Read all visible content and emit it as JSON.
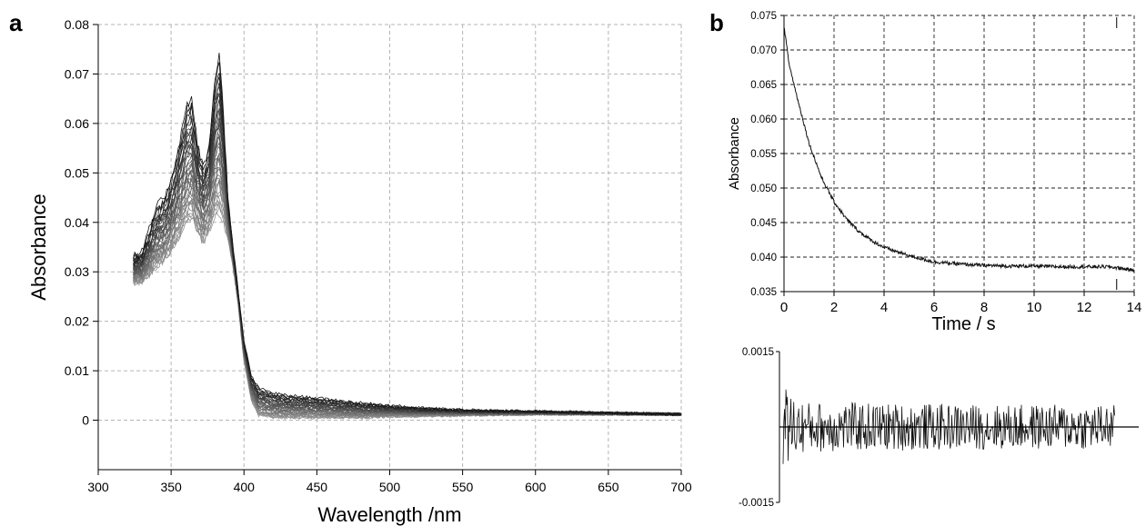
{
  "figure": {
    "panel_a_label": "a",
    "panel_b_label": "b"
  },
  "chart_data": [
    {
      "type": "line",
      "panel": "a",
      "xlabel": "Wavelength /nm",
      "ylabel": "Absorbance",
      "xlim": [
        300,
        700
      ],
      "ylim": [
        -0.01,
        0.08
      ],
      "xticks": [
        "300",
        "350",
        "400",
        "450",
        "500",
        "550",
        "600",
        "650",
        "700"
      ],
      "yticks": [
        "0",
        "0.01",
        "0.02",
        "0.03",
        "0.04",
        "0.05",
        "0.06",
        "0.07",
        "0.08"
      ],
      "grid": true,
      "line_color": "#111111",
      "series_count": 40,
      "first_spectrum": {
        "x": [
          324,
          330,
          340,
          347,
          352,
          357,
          361,
          364,
          368,
          372,
          376,
          380,
          383,
          386,
          389,
          392,
          396,
          400,
          405,
          410,
          420,
          430,
          450,
          480,
          520,
          560,
          600,
          650,
          700
        ],
        "y": [
          0.033,
          0.034,
          0.043,
          0.046,
          0.051,
          0.058,
          0.064,
          0.065,
          0.056,
          0.051,
          0.055,
          0.069,
          0.074,
          0.062,
          0.045,
          0.036,
          0.026,
          0.016,
          0.009,
          0.0065,
          0.0055,
          0.005,
          0.0045,
          0.0035,
          0.0025,
          0.002,
          0.0018,
          0.0015,
          0.0012
        ]
      },
      "last_spectrum": {
        "x": [
          324,
          330,
          340,
          347,
          352,
          357,
          361,
          364,
          368,
          372,
          376,
          380,
          383,
          386,
          389,
          392,
          396,
          400,
          405,
          410,
          420,
          430,
          450,
          480,
          520,
          560,
          600,
          650,
          700
        ],
        "y": [
          0.028,
          0.028,
          0.031,
          0.033,
          0.035,
          0.038,
          0.04,
          0.041,
          0.038,
          0.036,
          0.038,
          0.041,
          0.042,
          0.04,
          0.037,
          0.032,
          0.024,
          0.012,
          0.004,
          0.001,
          0.0005,
          0.0005,
          0.0005,
          0.0005,
          0.0008,
          0.001,
          0.0012,
          0.0012,
          0.0012
        ]
      }
    },
    {
      "type": "line",
      "panel": "b",
      "xlabel": "Time / s",
      "ylabel": "Absorbance",
      "xlim": [
        0,
        14
      ],
      "ylim": [
        0.035,
        0.075
      ],
      "xticks": [
        "0",
        "2",
        "4",
        "6",
        "8",
        "10",
        "12",
        "14"
      ],
      "yticks": [
        "0.035",
        "0.040",
        "0.045",
        "0.050",
        "0.055",
        "0.060",
        "0.065",
        "0.070",
        "0.075"
      ],
      "grid": true,
      "line_color": "#111111",
      "series": [
        {
          "x": [
            0,
            0.2,
            0.5,
            1,
            1.5,
            2,
            2.5,
            3,
            3.5,
            4,
            5,
            6,
            7,
            8,
            9,
            10,
            11,
            12,
            13,
            14
          ],
          "y": [
            0.0735,
            0.068,
            0.0635,
            0.0565,
            0.0515,
            0.048,
            0.0455,
            0.0437,
            0.0424,
            0.0414,
            0.0402,
            0.0393,
            0.039,
            0.0388,
            0.0387,
            0.0387,
            0.0386,
            0.0386,
            0.0386,
            0.0381
          ]
        }
      ]
    },
    {
      "type": "line",
      "panel": "b-residuals",
      "xlim": [
        0,
        14
      ],
      "ylim": [
        -0.0015,
        0.0015
      ],
      "yticks": [
        "0.0015",
        "-0.0015"
      ],
      "zero_line": true,
      "line_color": "#111111",
      "envelope": {
        "x": [
          0,
          0.5,
          1,
          2,
          4,
          8,
          14
        ],
        "amplitude": [
          0.0009,
          0.0006,
          0.0005,
          0.0005,
          0.00048,
          0.00045,
          0.00045
        ]
      }
    }
  ]
}
